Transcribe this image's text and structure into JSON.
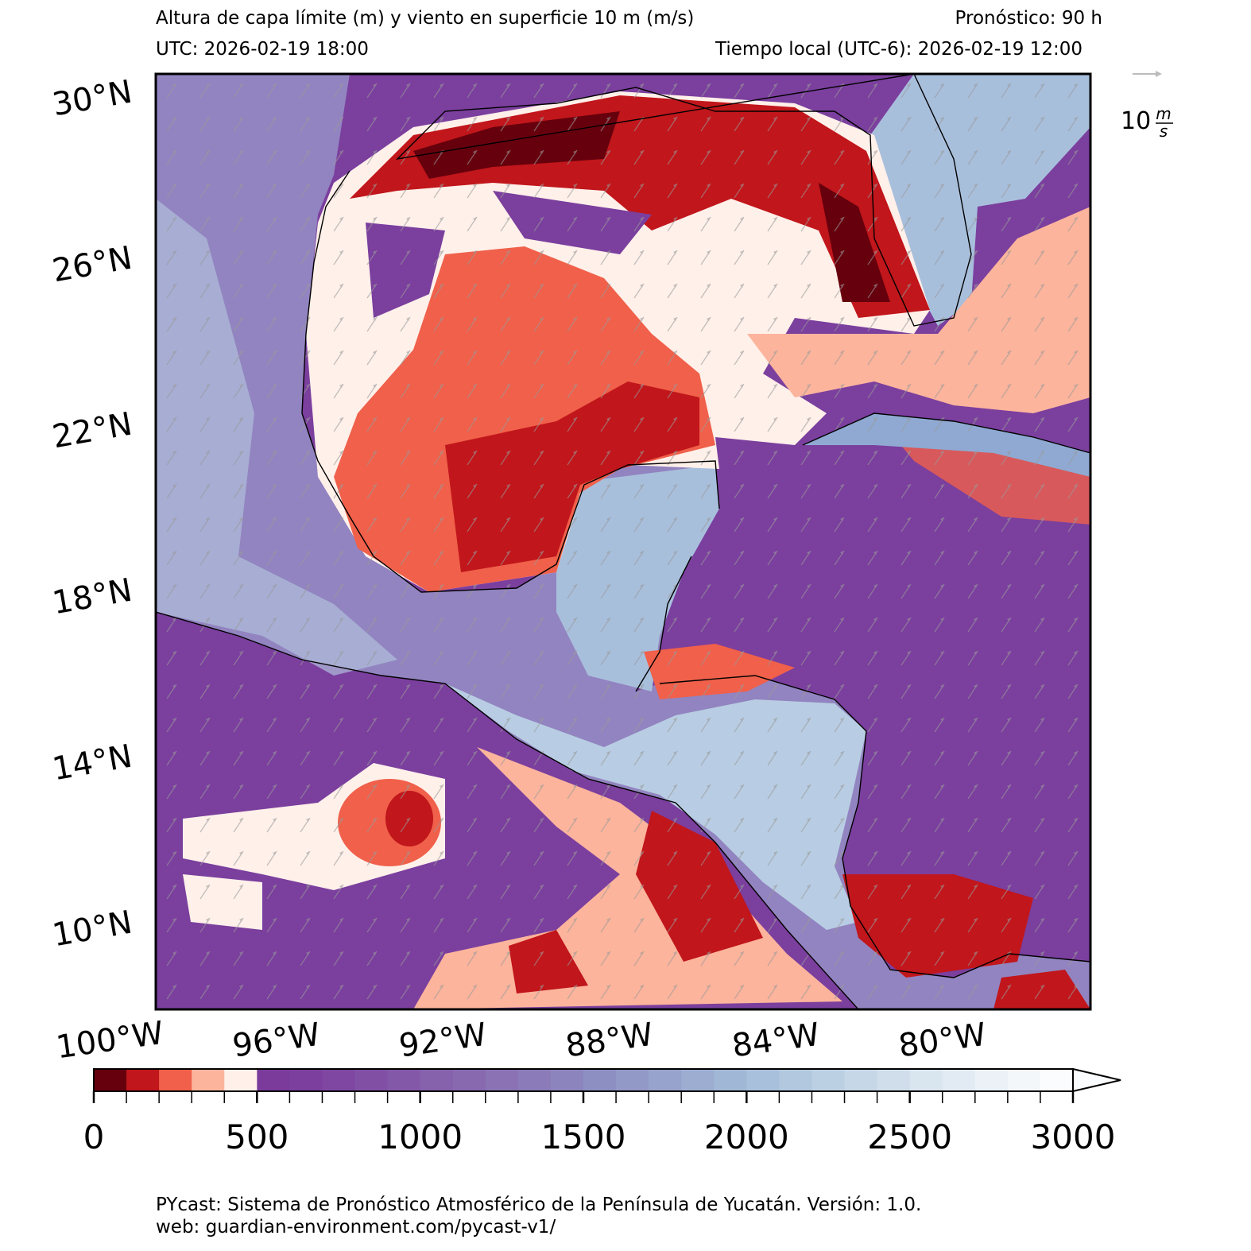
{
  "header": {
    "title": "Altura de capa límite (m) y viento en superficie 10 m (m/s)",
    "forecast": "Pronóstico: 90 h",
    "utc": "UTC:  2026-02-19 18:00",
    "local": "Tiempo local (UTC-6): 2026-02-19 12:00"
  },
  "map": {
    "lat_labels": [
      "30°N",
      "26°N",
      "22°N",
      "18°N",
      "14°N",
      "10°N"
    ],
    "lon_labels": [
      "100°W",
      "96°W",
      "92°W",
      "88°W",
      "84°W",
      "80°W"
    ],
    "wind_key": {
      "value": "10",
      "num": "m",
      "den": "s"
    }
  },
  "colorbar": {
    "levels": [
      0,
      100,
      200,
      300,
      400,
      500,
      600,
      700,
      800,
      900,
      1000,
      1100,
      1200,
      1300,
      1400,
      1500,
      1600,
      1700,
      1800,
      1900,
      2000,
      2100,
      2200,
      2300,
      2400,
      2500,
      2600,
      2700,
      2800,
      2900,
      3000
    ],
    "colors": [
      "#67000d",
      "#c1161b",
      "#f0604a",
      "#fcb49c",
      "#fff0ea",
      "#7a3b9b",
      "#7d3f9d",
      "#7f47a1",
      "#8150a5",
      "#8458a9",
      "#8661ac",
      "#8869b0",
      "#8a72b4",
      "#8b7bb8",
      "#8c85bd",
      "#8d8fc2",
      "#9299c7",
      "#97a3cc",
      "#9cadd1",
      "#a1b7d6",
      "#a8c0db",
      "#b2c8df",
      "#bcd0e3",
      "#c6d7e7",
      "#d0deeb",
      "#d9e5ef",
      "#e2ebf3",
      "#ebf1f7",
      "#f3f7fa",
      "#fbfcfd"
    ],
    "ticks": [
      0,
      500,
      1000,
      1500,
      2000,
      2500,
      3000
    ],
    "extend": "max"
  },
  "footer": {
    "line1": "PYcast: Sistema de Pronóstico Atmosférico de la Península de Yucatán. Versión: 1.0.",
    "line2": "web: guardian-environment.com/pycast-v1/"
  }
}
